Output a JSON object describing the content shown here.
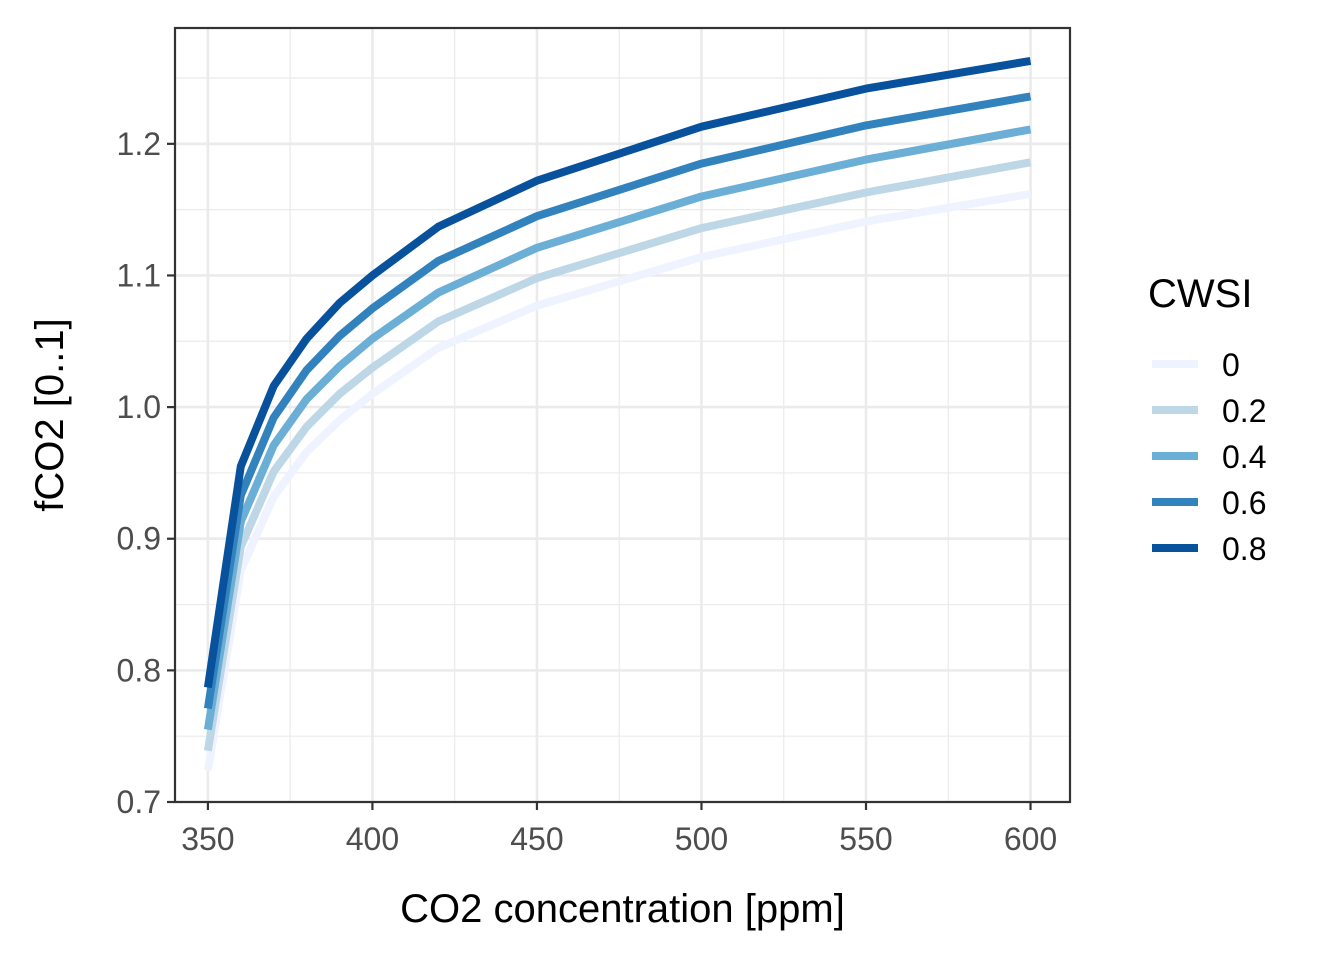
{
  "chart_data": {
    "type": "line",
    "xlabel": "CO2 concentration [ppm]",
    "ylabel": "fCO2 [0..1]",
    "xlim": [
      340,
      612
    ],
    "ylim": [
      0.7,
      1.288
    ],
    "x_ticks": [
      350,
      400,
      450,
      500,
      550,
      600
    ],
    "y_ticks": [
      0.7,
      0.8,
      0.9,
      1.0,
      1.1,
      1.2
    ],
    "x_tick_labels": [
      "350",
      "400",
      "450",
      "500",
      "550",
      "600"
    ],
    "y_tick_labels": [
      "0.7",
      "0.8",
      "0.9",
      "1.0",
      "1.1",
      "1.2"
    ],
    "grid": true,
    "legend_title": "CWSI",
    "legend_position": "right",
    "x": [
      350,
      360,
      370,
      380,
      390,
      400,
      420,
      450,
      500,
      550,
      600
    ],
    "series": [
      {
        "name": "0",
        "color": "#eff3ff",
        "values": [
          0.724,
          0.876,
          0.932,
          0.966,
          0.99,
          1.01,
          1.045,
          1.077,
          1.114,
          1.141,
          1.162
        ]
      },
      {
        "name": "0.2",
        "color": "#bdd7e7",
        "values": [
          0.739,
          0.894,
          0.951,
          0.985,
          1.01,
          1.03,
          1.065,
          1.098,
          1.136,
          1.163,
          1.186
        ]
      },
      {
        "name": "0.4",
        "color": "#6baed6",
        "values": [
          0.755,
          0.913,
          0.971,
          1.006,
          1.031,
          1.052,
          1.087,
          1.121,
          1.16,
          1.188,
          1.211
        ]
      },
      {
        "name": "0.6",
        "color": "#3182bd",
        "values": [
          0.771,
          0.933,
          0.992,
          1.028,
          1.054,
          1.075,
          1.111,
          1.145,
          1.185,
          1.214,
          1.236
        ]
      },
      {
        "name": "0.8",
        "color": "#08519c",
        "values": [
          0.787,
          0.955,
          1.016,
          1.052,
          1.079,
          1.1,
          1.137,
          1.172,
          1.213,
          1.242,
          1.263
        ]
      }
    ]
  }
}
